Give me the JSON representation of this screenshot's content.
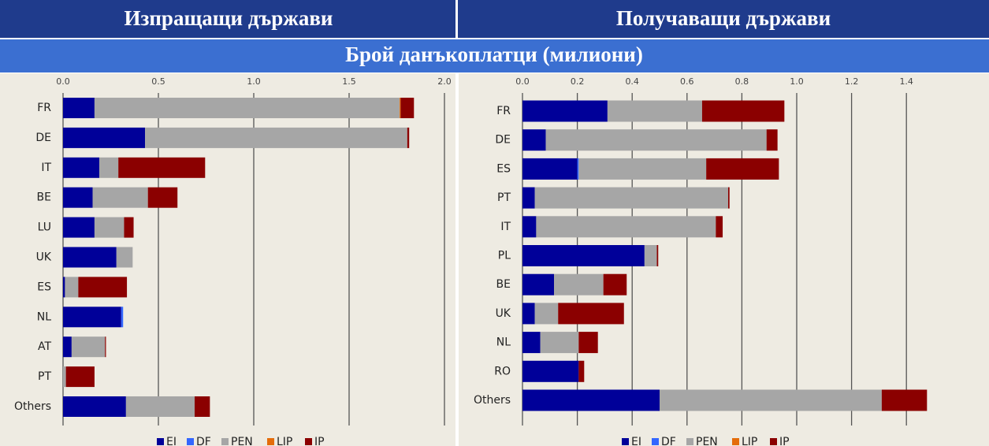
{
  "banner": "Брой данъкоплатци (милиони)",
  "chart_data": [
    {
      "type": "stacked-bar-horizontal",
      "title": "Изпращащи държави",
      "categories": [
        "FR",
        "DE",
        "IT",
        "BE",
        "LU",
        "UK",
        "ES",
        "NL",
        "AT",
        "PT",
        "Others"
      ],
      "series": [
        {
          "name": "EI",
          "color": "#000099",
          "values": [
            0.165,
            0.43,
            0.19,
            0.155,
            0.165,
            0.28,
            0.01,
            0.305,
            0.045,
            0,
            0.33
          ]
        },
        {
          "name": "DF",
          "color": "#3366ff",
          "values": [
            0,
            0,
            0,
            0,
            0,
            0,
            0,
            0.01,
            0,
            0,
            0
          ]
        },
        {
          "name": "PEN",
          "color": "#a6a6a6",
          "values": [
            1.6,
            1.375,
            0.1,
            0.29,
            0.155,
            0.085,
            0.07,
            0,
            0.175,
            0.015,
            0.36
          ]
        },
        {
          "name": "LIP",
          "color": "#e46c0a",
          "values": [
            0.005,
            0,
            0,
            0,
            0,
            0,
            0,
            0,
            0,
            0,
            0
          ]
        },
        {
          "name": "IP",
          "color": "#8b0000",
          "values": [
            0.07,
            0.01,
            0.455,
            0.155,
            0.05,
            0,
            0.255,
            0,
            0.005,
            0.15,
            0.08
          ]
        }
      ],
      "xlim": [
        0,
        2
      ],
      "xticks": [
        {
          "value": 0,
          "label": "0.0"
        },
        0.5,
        {
          "value": 1,
          "label": "1.0"
        },
        1.5,
        {
          "value": 2,
          "label": "2.0"
        }
      ],
      "grid": true,
      "legend": "bottom"
    },
    {
      "type": "stacked-bar-horizontal",
      "title": "Получаващи държави",
      "categories": [
        "FR",
        "DE",
        "ES",
        "PT",
        "IT",
        "PL",
        "BE",
        "UK",
        "NL",
        "RO",
        "Others"
      ],
      "series": [
        {
          "name": "EI",
          "color": "#000099",
          "values": [
            0.31,
            0.085,
            0.2,
            0.045,
            0.05,
            0.445,
            0.115,
            0.045,
            0.065,
            0.205,
            0.5
          ]
        },
        {
          "name": "DF",
          "color": "#3366ff",
          "values": [
            0,
            0,
            0.005,
            0,
            0,
            0,
            0,
            0,
            0,
            0,
            0
          ]
        },
        {
          "name": "PEN",
          "color": "#a6a6a6",
          "values": [
            0.345,
            0.805,
            0.465,
            0.705,
            0.655,
            0.045,
            0.18,
            0.085,
            0.14,
            0,
            0.81
          ]
        },
        {
          "name": "LIP",
          "color": "#e46c0a",
          "values": [
            0,
            0,
            0,
            0,
            0,
            0,
            0,
            0,
            0,
            0,
            0
          ]
        },
        {
          "name": "IP",
          "color": "#8b0000",
          "values": [
            0.3,
            0.04,
            0.265,
            0.005,
            0.025,
            0.005,
            0.085,
            0.24,
            0.07,
            0.02,
            0.165
          ]
        }
      ],
      "xlim": [
        0,
        1.5
      ],
      "xticks": [
        {
          "value": 0,
          "label": "0.0"
        },
        0.2,
        0.4,
        0.6,
        0.8,
        {
          "value": 1,
          "label": "1.0"
        },
        1.2,
        1.4
      ],
      "grid": true,
      "legend": "bottom"
    }
  ]
}
